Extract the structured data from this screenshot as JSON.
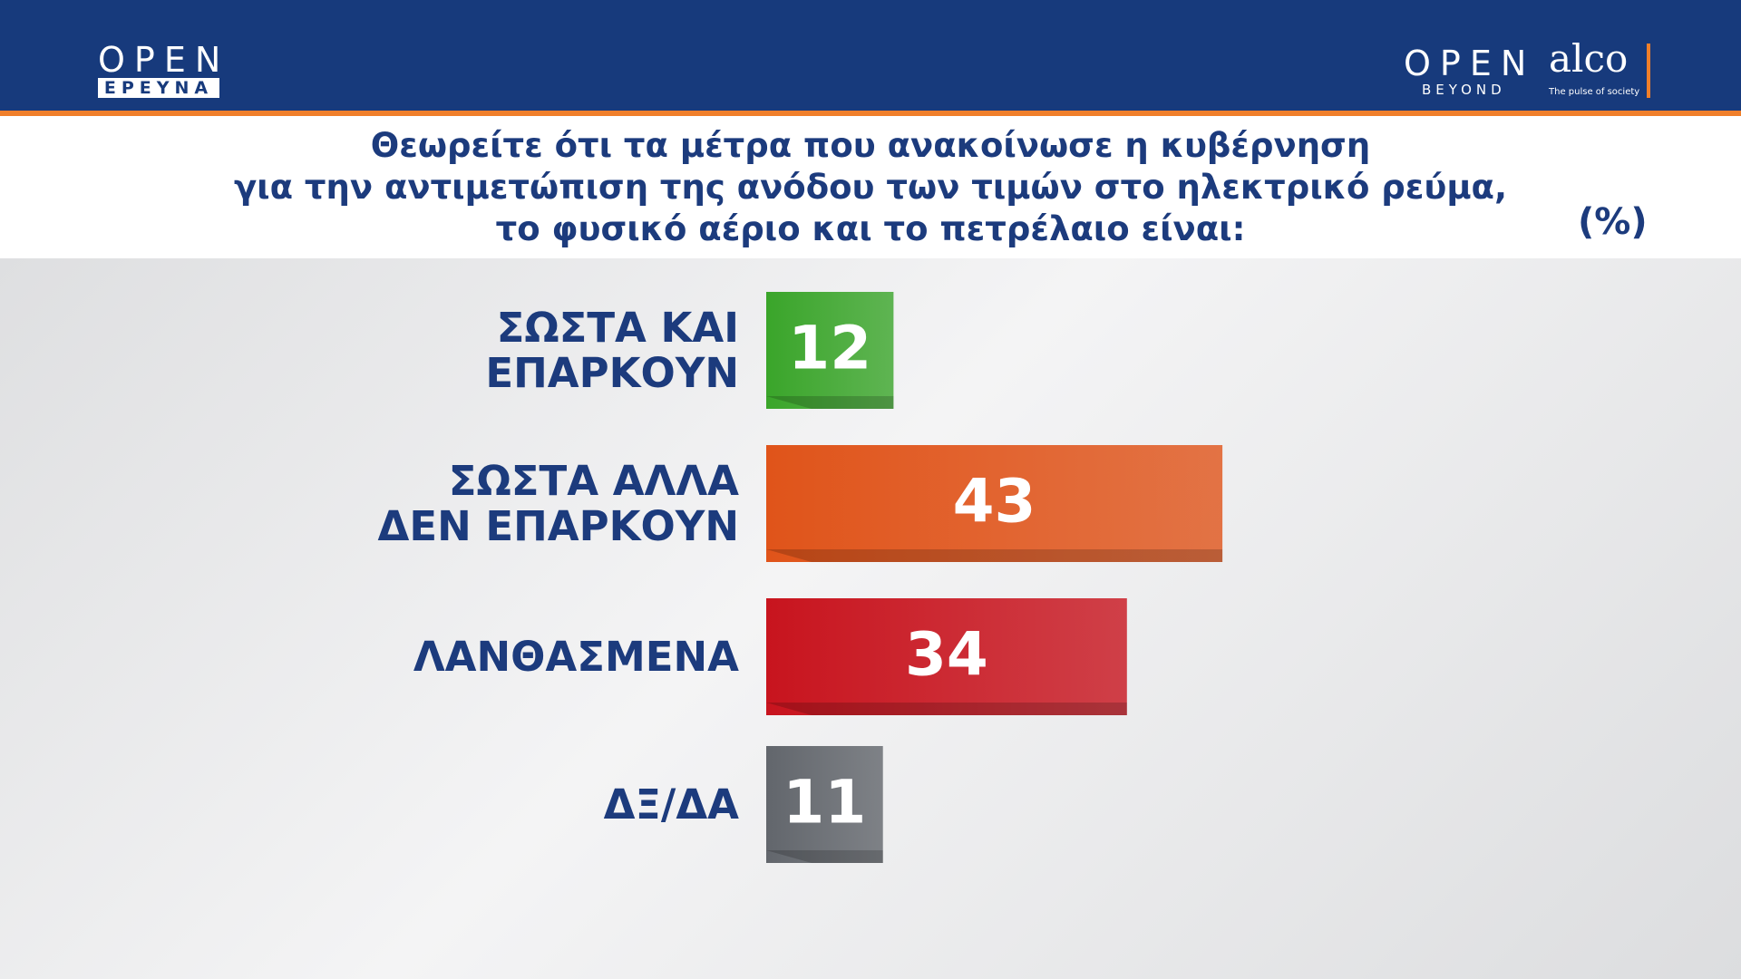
{
  "header": {
    "left_logo": "OPEN",
    "left_logo_sub": "ΕΡΕΥΝΑ",
    "right_logo": "OPEN",
    "right_logo_sub": "BEYOND",
    "partner": "alco",
    "partner_sub": "The pulse of society"
  },
  "chart_data": {
    "type": "bar",
    "orientation": "horizontal",
    "title": "Θεωρείτε ότι τα μέτρα που ανακοίνωσε η κυβέρνηση\nγια την αντιμετώπιση της ανόδου των τιμών στο ηλεκτρικό ρεύμα,\nτο φυσικό αέριο και το πετρέλαιο είναι:",
    "unit_label": "(%)",
    "categories": [
      "ΣΩΣΤΑ ΚΑΙ\nΕΠΑΡΚΟΥΝ",
      "ΣΩΣΤΑ ΑΛΛΑ\nΔΕΝ ΕΠΑΡΚΟΥΝ",
      "ΛΑΝΘΑΣΜΕΝΑ",
      "ΔΞ/ΔΑ"
    ],
    "values": [
      12,
      43,
      34,
      11
    ],
    "colors": [
      "#3aa52a",
      "#e0541a",
      "#c8141e",
      "#62666c"
    ]
  }
}
